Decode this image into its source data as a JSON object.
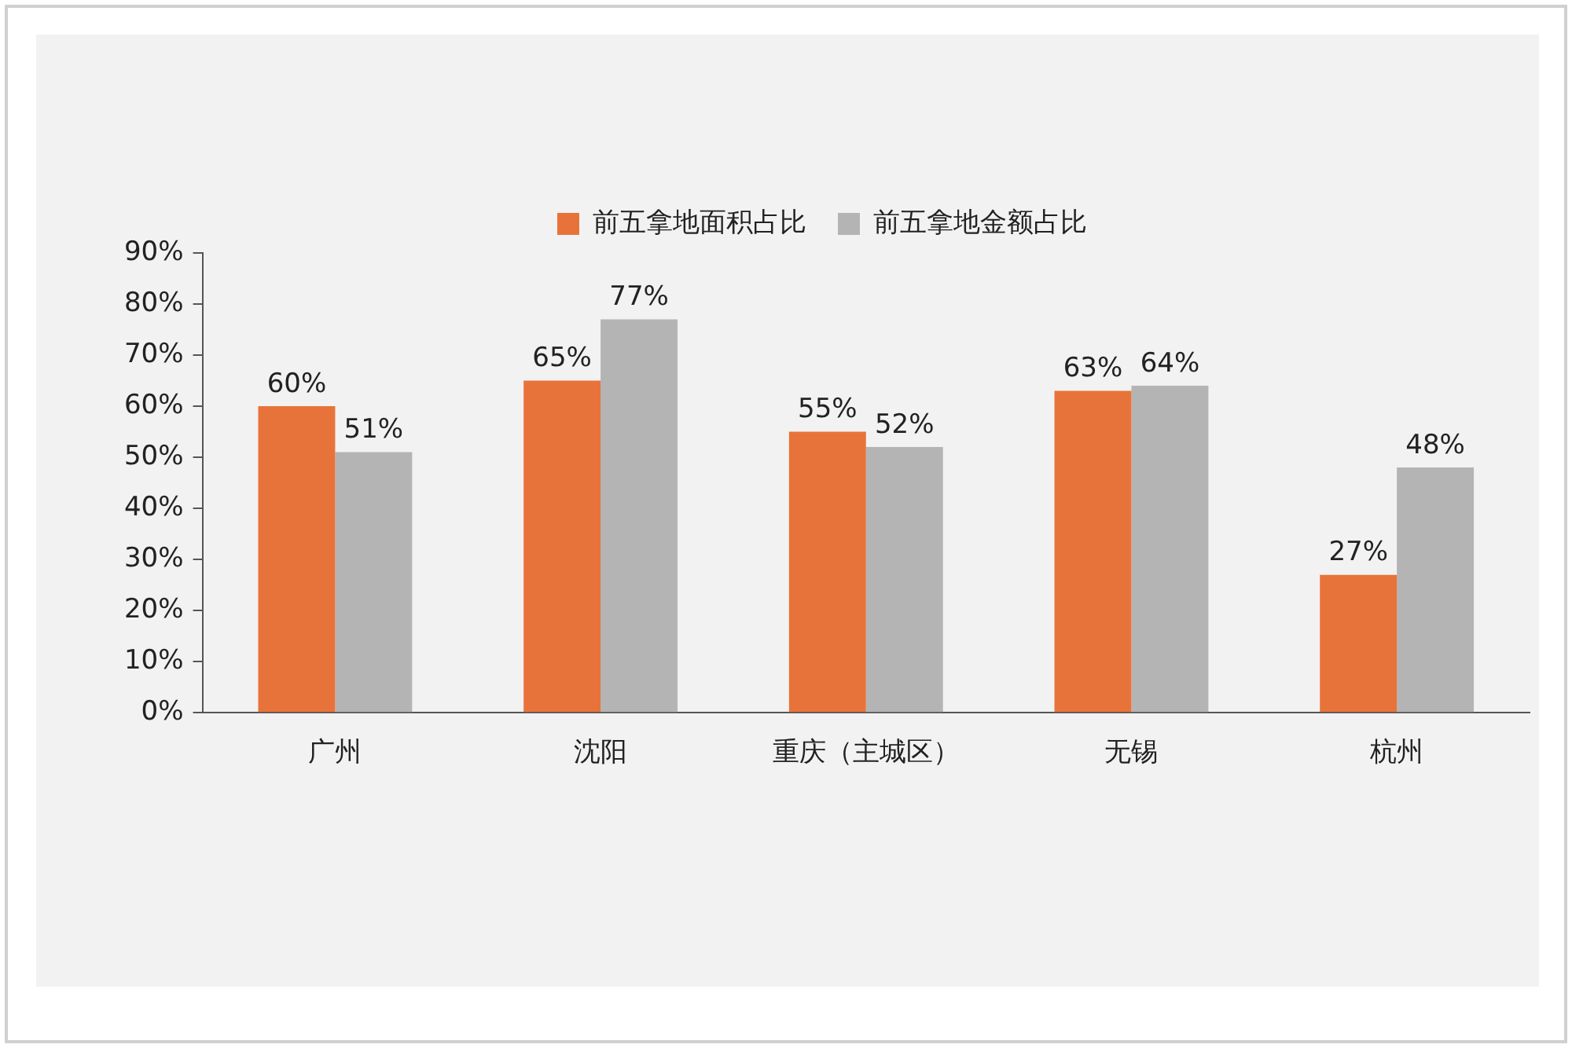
{
  "chart_data": {
    "type": "bar",
    "categories": [
      "广州",
      "沈阳",
      "重庆（主城区）",
      "无锡",
      "杭州"
    ],
    "series": [
      {
        "name": "前五拿地面积占比",
        "color": "#e8733a",
        "values": [
          60,
          65,
          55,
          63,
          27
        ],
        "value_labels": [
          "60%",
          "65%",
          "55%",
          "63%",
          "27%"
        ]
      },
      {
        "name": "前五拿地金额占比",
        "color": "#b4b4b4",
        "values": [
          51,
          77,
          52,
          64,
          48
        ],
        "value_labels": [
          "51%",
          "77%",
          "52%",
          "64%",
          "48%"
        ]
      }
    ],
    "ylim": [
      0,
      90
    ],
    "yticks": [
      {
        "value": 0,
        "label": "0%"
      },
      {
        "value": 10,
        "label": "10%"
      },
      {
        "value": 20,
        "label": "20%"
      },
      {
        "value": 30,
        "label": "30%"
      },
      {
        "value": 40,
        "label": "40%"
      },
      {
        "value": 50,
        "label": "50%"
      },
      {
        "value": 60,
        "label": "60%"
      },
      {
        "value": 70,
        "label": "70%"
      },
      {
        "value": 80,
        "label": "80%"
      },
      {
        "value": 90,
        "label": "90%"
      }
    ],
    "grid": false,
    "legend": "top"
  }
}
